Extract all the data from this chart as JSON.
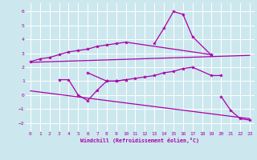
{
  "xlabel": "Windchill (Refroidissement éolien,°C)",
  "background_color": "#cce8ee",
  "grid_color": "#ffffff",
  "line_color": "#aa00aa",
  "xlim": [
    -0.5,
    23.5
  ],
  "ylim": [
    -2.6,
    6.6
  ],
  "xticks": [
    0,
    1,
    2,
    3,
    4,
    5,
    6,
    7,
    8,
    9,
    10,
    11,
    12,
    13,
    14,
    15,
    16,
    17,
    18,
    19,
    20,
    21,
    22,
    23
  ],
  "yticks": [
    -2,
    -1,
    0,
    1,
    2,
    3,
    4,
    5,
    6
  ],
  "series": [
    {
      "x": [
        0,
        1,
        2,
        3,
        4,
        5,
        6,
        7,
        8,
        9,
        10,
        19
      ],
      "y": [
        2.4,
        2.6,
        2.7,
        2.9,
        3.1,
        3.2,
        3.3,
        3.5,
        3.6,
        3.7,
        3.8,
        2.9
      ]
    },
    {
      "x": [
        13,
        14,
        15,
        16,
        17,
        19
      ],
      "y": [
        3.7,
        4.8,
        6.0,
        5.8,
        4.2,
        2.85
      ]
    },
    {
      "x": [
        3,
        4,
        5,
        6,
        7,
        8,
        9,
        10
      ],
      "y": [
        1.1,
        1.1,
        0.0,
        -0.4,
        0.35,
        1.0,
        1.0,
        1.1
      ]
    },
    {
      "x": [
        6,
        8,
        9,
        10,
        11,
        12,
        13,
        14,
        15,
        16,
        17,
        19,
        20
      ],
      "y": [
        1.6,
        1.0,
        1.0,
        1.1,
        1.2,
        1.3,
        1.4,
        1.6,
        1.7,
        1.9,
        2.0,
        1.4,
        1.4
      ]
    },
    {
      "x": [
        20,
        21,
        22,
        23
      ],
      "y": [
        -0.1,
        -1.1,
        -1.7,
        -1.8
      ]
    }
  ],
  "reg_lines": [
    {
      "x": [
        0,
        23
      ],
      "y": [
        2.35,
        2.85
      ]
    },
    {
      "x": [
        0,
        23
      ],
      "y": [
        0.3,
        -1.7
      ]
    }
  ]
}
